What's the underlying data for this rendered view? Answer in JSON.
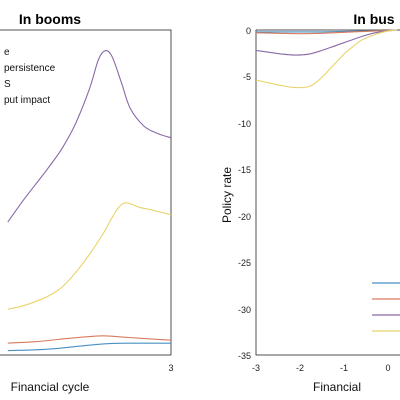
{
  "chart_data": [
    {
      "type": "line",
      "title": "In booms",
      "xlabel": "Financial cycle",
      "ylabel": "",
      "xlim": [
        -3,
        3
      ],
      "xticks": [
        "3"
      ],
      "legend": {
        "placement": "top-left",
        "entries": [
          "e",
          "persistence",
          "S",
          "put impact"
        ]
      },
      "series": [
        {
          "color": "#4a90c2",
          "x": [
            -0.6,
            0,
            0.5,
            1,
            1.5,
            2,
            2.5,
            3
          ],
          "y": [
            -9.7,
            -9.65,
            -9.55,
            -9.4,
            -9.25,
            -9.2,
            -9.2,
            -9.2
          ]
        },
        {
          "color": "#d97a5e",
          "x": [
            -0.6,
            0,
            0.5,
            1,
            1.5,
            2,
            2.5,
            3
          ],
          "y": [
            -9.2,
            -9.1,
            -8.95,
            -8.8,
            -8.7,
            -8.8,
            -8.9,
            -9.0
          ]
        },
        {
          "color": "#e8d36a",
          "x": [
            -0.6,
            -0.3,
            0,
            0.3,
            0.6,
            0.9,
            1.2,
            1.5,
            1.8,
            2.0,
            2.3,
            2.6,
            3.0
          ],
          "y": [
            -6.9,
            -6.7,
            -6.4,
            -6.0,
            -5.4,
            -4.4,
            -3.2,
            -1.8,
            -0.2,
            0.3,
            0.0,
            -0.2,
            -0.5
          ]
        },
        {
          "color": "#8a6aa8",
          "x": [
            -0.6,
            -0.3,
            0,
            0.3,
            0.6,
            0.9,
            1.2,
            1.4,
            1.55,
            1.7,
            1.9,
            2.1,
            2.4,
            2.7,
            3.0
          ],
          "y": [
            -1.0,
            0.3,
            1.5,
            2.7,
            4.0,
            5.7,
            8.0,
            10.0,
            10.6,
            10.2,
            8.5,
            6.7,
            5.5,
            5.0,
            4.7
          ]
        }
      ]
    },
    {
      "type": "line",
      "title": "In bus",
      "xlabel": "Financial",
      "ylabel": "Policy rate",
      "xlim": [
        -3,
        3
      ],
      "ylim": [
        -35,
        0
      ],
      "xticks": [
        "-3",
        "-2",
        "-1",
        "0"
      ],
      "yticks": [
        "0",
        "-5",
        "-10",
        "-15",
        "-20",
        "-25",
        "-30",
        "-35"
      ],
      "legend": {
        "placement": "bottom-right",
        "entries": []
      },
      "series": [
        {
          "color": "#4a90c2",
          "x": [
            -3,
            -2.5,
            -2,
            -1.5,
            -1,
            -0.5,
            0,
            0.2
          ],
          "y": [
            -0.2,
            -0.2,
            -0.2,
            -0.2,
            -0.15,
            -0.1,
            -0.05,
            0
          ]
        },
        {
          "color": "#d97a5e",
          "x": [
            -3,
            -2.5,
            -2,
            -1.5,
            -1,
            -0.5,
            0,
            0.2
          ],
          "y": [
            -0.3,
            -0.35,
            -0.4,
            -0.35,
            -0.25,
            -0.15,
            -0.05,
            0
          ]
        },
        {
          "color": "#8a6aa8",
          "x": [
            -3,
            -2.7,
            -2.4,
            -2.1,
            -1.8,
            -1.5,
            -1.2,
            -0.9,
            -0.6,
            -0.3,
            0,
            0.2
          ],
          "y": [
            -2.2,
            -2.4,
            -2.6,
            -2.7,
            -2.6,
            -2.2,
            -1.7,
            -1.2,
            -0.7,
            -0.3,
            -0.1,
            0
          ]
        },
        {
          "color": "#e8d36a",
          "x": [
            -3,
            -2.7,
            -2.4,
            -2.1,
            -1.8,
            -1.6,
            -1.4,
            -1.2,
            -1.0,
            -0.8,
            -0.6,
            -0.3,
            0,
            0.2
          ],
          "y": [
            -5.4,
            -5.7,
            -6.0,
            -6.2,
            -6.1,
            -5.5,
            -4.6,
            -3.6,
            -2.6,
            -1.8,
            -1.1,
            -0.5,
            -0.1,
            0
          ]
        }
      ]
    }
  ]
}
